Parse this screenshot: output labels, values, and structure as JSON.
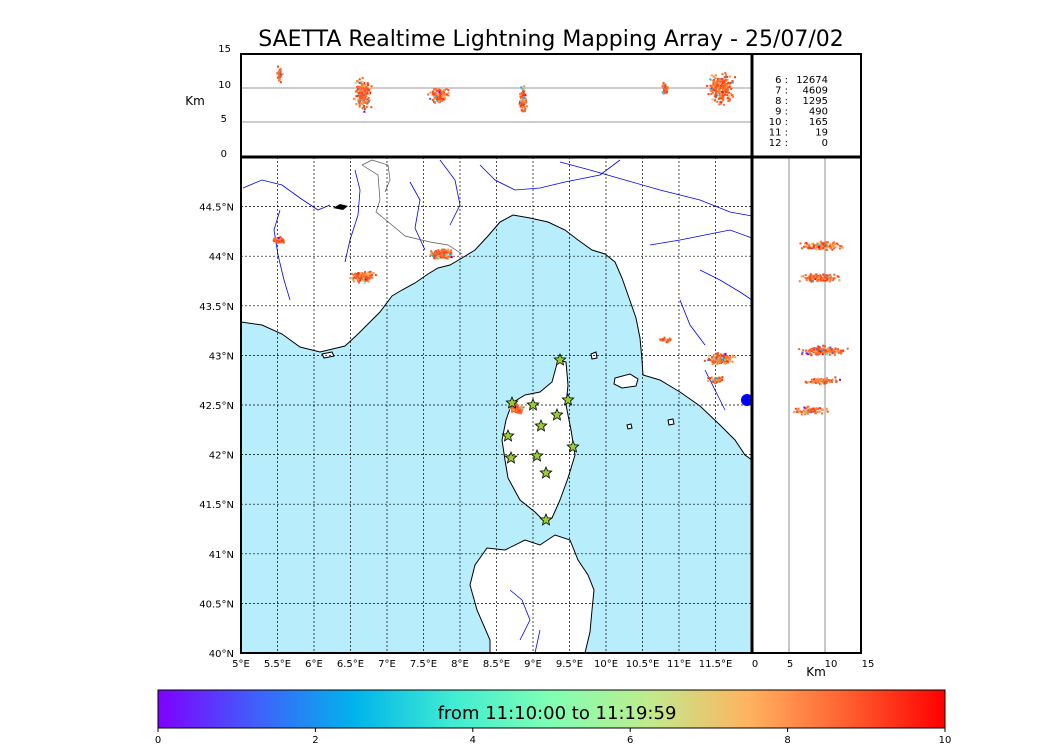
{
  "title": "SAETTA Realtime Lightning Mapping Array - 25/07/02",
  "top_panel": {
    "ylabel": "Km",
    "yticks": [
      "15",
      "10",
      "5",
      "0"
    ]
  },
  "side_panel": {
    "xlabel": "Km",
    "xticks": [
      "0",
      "5",
      "10",
      "15"
    ]
  },
  "map": {
    "lon_labels": [
      "5°E",
      "5.5°E",
      "6°E",
      "6.5°E",
      "7°E",
      "7.5°E",
      "8°E",
      "8.5°E",
      "9°E",
      "9.5°E",
      "10°E",
      "10.5°E",
      "11°E",
      "11.5°E"
    ],
    "lat_labels": [
      "40°N",
      "40.5°N",
      "41°N",
      "41.5°N",
      "42°N",
      "42.5°N",
      "43°N",
      "43.5°N",
      "44°N",
      "44.5°N"
    ],
    "colors": {
      "sea": "#b8eefc",
      "land": "#ffffff",
      "river": "#0000ff",
      "border": "#555555",
      "station": "#9acd32",
      "station_stroke": "#000000"
    }
  },
  "counts": [
    {
      "label": "6 :",
      "value": "12674",
      "color": "#ff0000"
    },
    {
      "label": "7 :",
      "value": "4609",
      "color": "#000000"
    },
    {
      "label": "8 :",
      "value": "1295",
      "color": "#000000"
    },
    {
      "label": "9 :",
      "value": "490",
      "color": "#000000"
    },
    {
      "label": "10 :",
      "value": "165",
      "color": "#000000"
    },
    {
      "label": "11 :",
      "value": "19",
      "color": "#000000"
    },
    {
      "label": "12 :",
      "value": "0",
      "color": "#000000"
    }
  ],
  "colorbar": {
    "label": "from 11:10:00 to 11:19:59",
    "ticks": [
      "0",
      "2",
      "4",
      "6",
      "8",
      "10"
    ],
    "stops": [
      "#7f00ff",
      "#3f60fb",
      "#00b4eb",
      "#40ecd3",
      "#80ffb4",
      "#c0eb8d",
      "#ffb360",
      "#ff6030",
      "#ff0000"
    ]
  }
}
